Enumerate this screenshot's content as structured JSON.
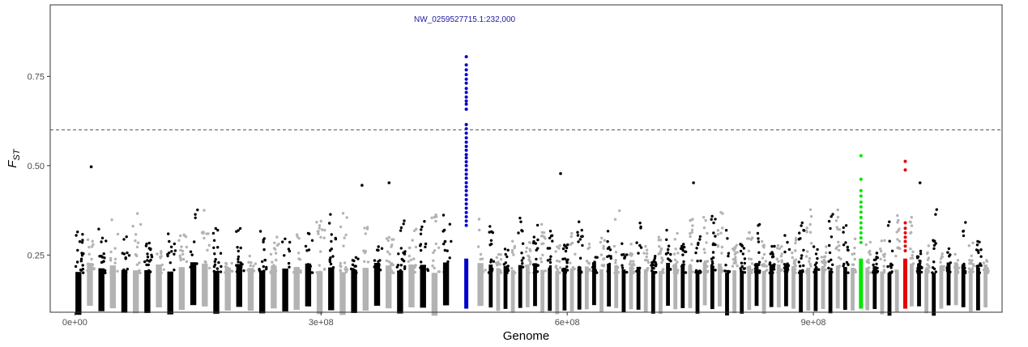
{
  "chart_data": {
    "type": "scatter",
    "title": "",
    "xlabel": "Genome",
    "ylabel": {
      "main": "F",
      "sub": "ST"
    },
    "xlim": [
      -30000000,
      1130000000
    ],
    "ylim": [
      0.09,
      0.95
    ],
    "x_ticks": [
      {
        "value": 0,
        "label": "0e+00"
      },
      {
        "value": 300000000,
        "label": "3e+08"
      },
      {
        "value": 600000000,
        "label": "6e+08"
      },
      {
        "value": 900000000,
        "label": "9e+08"
      }
    ],
    "y_ticks": [
      {
        "value": 0.25,
        "label": "0.25"
      },
      {
        "value": 0.5,
        "label": "0.50"
      },
      {
        "value": 0.75,
        "label": "0.75"
      }
    ],
    "threshold": 0.6,
    "grid": false,
    "legend": "none",
    "colors": {
      "odd_scaffold": "#000000",
      "even_scaffold": "#b3b3b3",
      "highlight_1": "#0000cd",
      "highlight_2": "#00e600",
      "highlight_3": "#e60000",
      "annotation": "#1a1aa0",
      "threshold_line": "#555555"
    },
    "annotation": {
      "label": "NW_0259527715.1:232,000",
      "x": 477000000
    },
    "highlight_columns": [
      {
        "name": "NW_0259527715.1",
        "x": 477000000,
        "color": "#0000cd",
        "values": [
          0.805,
          0.782,
          0.768,
          0.755,
          0.742,
          0.731,
          0.716,
          0.705,
          0.692,
          0.681,
          0.672,
          0.658,
          0.615,
          0.603,
          0.591,
          0.578,
          0.566,
          0.554,
          0.543,
          0.531,
          0.522,
          0.511,
          0.5,
          0.488,
          0.476,
          0.465,
          0.452,
          0.441,
          0.43,
          0.418,
          0.405,
          0.393,
          0.381,
          0.369,
          0.357,
          0.345,
          0.333
        ]
      },
      {
        "name": "green-scaffold",
        "x": 958000000,
        "color": "#00e600",
        "values": [
          0.528,
          0.462,
          0.43,
          0.415,
          0.398,
          0.385,
          0.37,
          0.355,
          0.34,
          0.326,
          0.312,
          0.298,
          0.285
        ]
      },
      {
        "name": "red-scaffold",
        "x": 1012000000,
        "color": "#e60000",
        "values": [
          0.512,
          0.488,
          0.34,
          0.325,
          0.312,
          0.3,
          0.288,
          0.275,
          0.262
        ]
      }
    ],
    "notable_points": [
      {
        "x": 20000000,
        "y": 0.497
      },
      {
        "x": 350000000,
        "y": 0.445
      },
      {
        "x": 383000000,
        "y": 0.452
      },
      {
        "x": 592000000,
        "y": 0.478
      },
      {
        "x": 754000000,
        "y": 0.452
      },
      {
        "x": 1030000000,
        "y": 0.452
      }
    ]
  }
}
